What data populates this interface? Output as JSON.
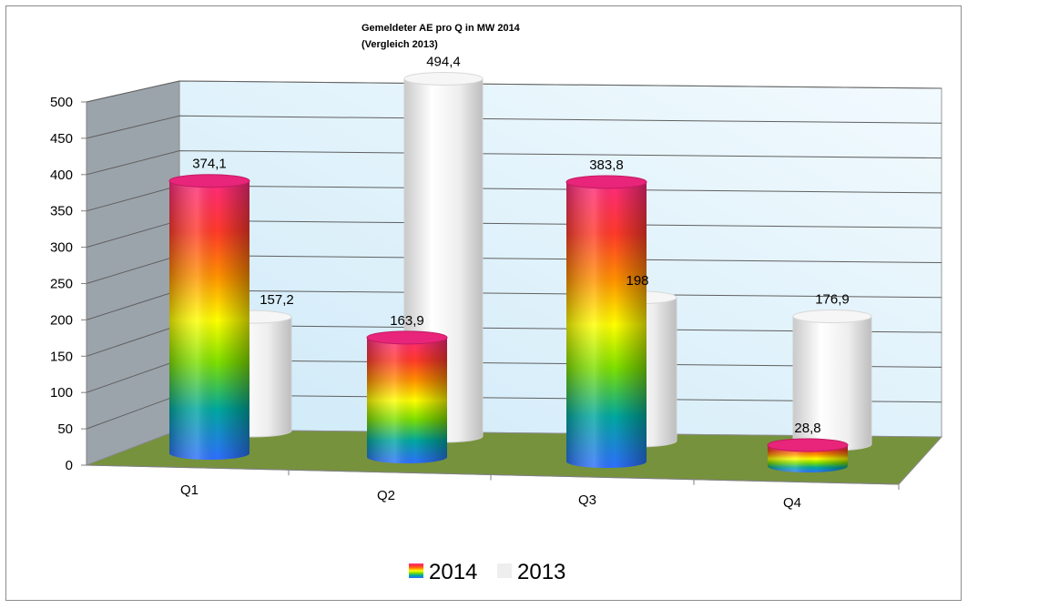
{
  "chart_data": {
    "type": "bar",
    "title": "Gemeldeter AE  pro Q in MW 2014",
    "subtitle": "(Vergleich 2013)",
    "categories": [
      "Q1",
      "Q2",
      "Q3",
      "Q4"
    ],
    "series": [
      {
        "name": "2014",
        "values": [
          374.1,
          163.9,
          383.8,
          28.8
        ],
        "labels": [
          "374,1",
          "163,9",
          "383,8",
          "28,8"
        ]
      },
      {
        "name": "2013",
        "values": [
          157.2,
          494.4,
          198,
          176.9
        ],
        "labels": [
          "157,2",
          "494,4",
          "198",
          "176,9"
        ]
      }
    ],
    "yticks": [
      "0",
      "50",
      "100",
      "150",
      "200",
      "250",
      "300",
      "350",
      "400",
      "450",
      "500"
    ],
    "ylim": [
      0,
      500
    ],
    "grid": true,
    "legend": "bottom",
    "style": "3d-cylinder",
    "colors": {
      "wall": "#dff1fb",
      "side_wall": "#9ba3ab",
      "floor": "#76923c",
      "series_2013": "#eeeeee",
      "rainbow": [
        "#2f6fff",
        "#00a8a0",
        "#7fe000",
        "#ffff00",
        "#ff9000",
        "#ff3a2a",
        "#ff2a80"
      ]
    }
  }
}
